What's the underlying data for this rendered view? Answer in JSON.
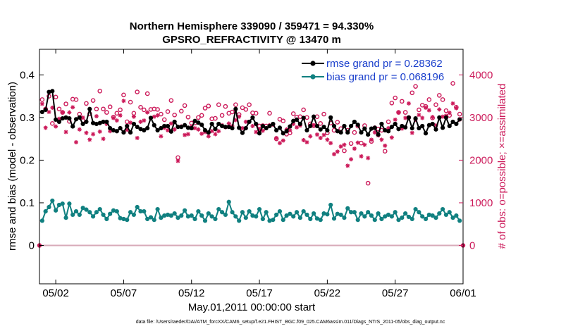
{
  "chart_data": {
    "type": "line",
    "title": "Northern Hemisphere 339090 / 359471 = 94.330%",
    "subtitle": "GPSRO_REFRACTIVITY @ 13470 m",
    "xlabel": "May.01,2011 00:00:00 start",
    "ylabel": "rmse and bias (model - observation)",
    "ylabel_right": "# of obs: o=possible; ×=assimilated",
    "footnote": "data file: /Users/raeder/DAI/ATM_forcXX/CAM6_setup/f.e21.FHIST_BGC.f09_025.CAM6assim.011/Diags_NTrS_2011-05/obs_diag_output.nc",
    "xlim": [
      0.8,
      32.0
    ],
    "ylim": [
      -0.09,
      0.46
    ],
    "ylim_right": [
      -900,
      4600
    ],
    "x_ticks": [
      {
        "value": 2,
        "label": "05/02"
      },
      {
        "value": 7,
        "label": "05/07"
      },
      {
        "value": 12,
        "label": "05/12"
      },
      {
        "value": 17,
        "label": "05/17"
      },
      {
        "value": 22,
        "label": "05/22"
      },
      {
        "value": 27,
        "label": "05/27"
      },
      {
        "value": 32,
        "label": "06/01"
      }
    ],
    "y_ticks": [
      {
        "value": 0,
        "label": "0"
      },
      {
        "value": 0.1,
        "label": "0.1"
      },
      {
        "value": 0.2,
        "label": "0.2"
      },
      {
        "value": 0.3,
        "label": "0.3"
      },
      {
        "value": 0.4,
        "label": "0.4"
      }
    ],
    "y_ticks_right": [
      {
        "value": 0,
        "label": "0"
      },
      {
        "value": 1000,
        "label": "1000"
      },
      {
        "value": 2000,
        "label": "2000"
      },
      {
        "value": 3000,
        "label": "3000"
      },
      {
        "value": 4000,
        "label": "4000"
      }
    ],
    "legend": [
      {
        "name": "rmse grand pr = 0.28362",
        "color": "#000000"
      },
      {
        "name": "bias grand pr = 0.068196",
        "color": "#108080"
      }
    ],
    "colors": {
      "rmse": "#000000",
      "bias": "#108080",
      "obs": "#cc1a5a",
      "zero": "#d8aab8"
    },
    "x": [
      1.0,
      1.25,
      1.5,
      1.75,
      2.0,
      2.25,
      2.5,
      2.75,
      3.0,
      3.25,
      3.5,
      3.75,
      4.0,
      4.25,
      4.5,
      4.75,
      5.0,
      5.25,
      5.5,
      5.75,
      6.0,
      6.25,
      6.5,
      6.75,
      7.0,
      7.25,
      7.5,
      7.75,
      8.0,
      8.25,
      8.5,
      8.75,
      9.0,
      9.25,
      9.5,
      9.75,
      10.0,
      10.25,
      10.5,
      10.75,
      11.0,
      11.25,
      11.5,
      11.75,
      12.0,
      12.25,
      12.5,
      12.75,
      13.0,
      13.25,
      13.5,
      13.75,
      14.0,
      14.25,
      14.5,
      14.75,
      15.0,
      15.25,
      15.5,
      15.75,
      16.0,
      16.25,
      16.5,
      16.75,
      17.0,
      17.25,
      17.5,
      17.75,
      18.0,
      18.25,
      18.5,
      18.75,
      19.0,
      19.25,
      19.5,
      19.75,
      20.0,
      20.25,
      20.5,
      20.75,
      21.0,
      21.25,
      21.5,
      21.75,
      22.0,
      22.25,
      22.5,
      22.75,
      23.0,
      23.25,
      23.5,
      23.75,
      24.0,
      24.25,
      24.5,
      24.75,
      25.0,
      25.25,
      25.5,
      25.75,
      26.0,
      26.25,
      26.5,
      26.75,
      27.0,
      27.25,
      27.5,
      27.75,
      28.0,
      28.25,
      28.5,
      28.75,
      29.0,
      29.25,
      29.5,
      29.75,
      30.0,
      30.25,
      30.5,
      30.75,
      31.0,
      31.25,
      31.5,
      31.75
    ],
    "series": [
      {
        "name": "rmse",
        "values": [
          0.313,
          0.318,
          0.36,
          0.362,
          0.295,
          0.29,
          0.298,
          0.3,
          0.298,
          0.279,
          0.296,
          0.3,
          0.285,
          0.29,
          0.32,
          0.287,
          0.285,
          0.287,
          0.29,
          0.29,
          0.275,
          0.27,
          0.268,
          0.275,
          0.265,
          0.28,
          0.265,
          0.285,
          0.278,
          0.273,
          0.27,
          0.275,
          0.299,
          0.282,
          0.27,
          0.275,
          0.28,
          0.28,
          0.267,
          0.29,
          0.278,
          0.278,
          0.282,
          0.276,
          0.275,
          0.292,
          0.288,
          0.283,
          0.27,
          0.265,
          0.285,
          0.273,
          0.285,
          0.28,
          0.278,
          0.278,
          0.275,
          0.32,
          0.276,
          0.264,
          0.275,
          0.29,
          0.3,
          0.285,
          0.263,
          0.28,
          0.275,
          0.28,
          0.285,
          0.27,
          0.276,
          0.263,
          0.268,
          0.279,
          0.292,
          0.295,
          0.285,
          0.299,
          0.27,
          0.28,
          0.302,
          0.28,
          0.272,
          0.278,
          0.27,
          0.3,
          0.28,
          0.268,
          0.265,
          0.28,
          0.265,
          0.28,
          0.29,
          0.283,
          0.265,
          0.274,
          0.26,
          0.274,
          0.276,
          0.26,
          0.285,
          0.27,
          0.268,
          0.278,
          0.285,
          0.273,
          0.28,
          0.277,
          0.3,
          0.275,
          0.298,
          0.275,
          0.28,
          0.263,
          0.282,
          0.285,
          0.272,
          0.3,
          0.276,
          0.3,
          0.28,
          0.29,
          0.285,
          0.296
        ]
      },
      {
        "name": "bias",
        "values": [
          0.058,
          0.08,
          0.09,
          0.105,
          0.082,
          0.095,
          0.098,
          0.065,
          0.098,
          0.072,
          0.08,
          0.072,
          0.088,
          0.084,
          0.078,
          0.068,
          0.078,
          0.085,
          0.072,
          0.062,
          0.074,
          0.082,
          0.08,
          0.064,
          0.062,
          0.06,
          0.078,
          0.072,
          0.09,
          0.08,
          0.08,
          0.062,
          0.066,
          0.06,
          0.085,
          0.065,
          0.07,
          0.072,
          0.07,
          0.075,
          0.065,
          0.07,
          0.082,
          0.068,
          0.07,
          0.062,
          0.08,
          0.07,
          0.058,
          0.075,
          0.068,
          0.062,
          0.085,
          0.078,
          0.072,
          0.102,
          0.078,
          0.068,
          0.058,
          0.078,
          0.065,
          0.08,
          0.07,
          0.068,
          0.085,
          0.062,
          0.078,
          0.058,
          0.06,
          0.072,
          0.08,
          0.06,
          0.07,
          0.074,
          0.068,
          0.078,
          0.065,
          0.08,
          0.072,
          0.062,
          0.075,
          0.063,
          0.06,
          0.075,
          0.073,
          0.095,
          0.063,
          0.074,
          0.072,
          0.065,
          0.087,
          0.078,
          0.078,
          0.06,
          0.075,
          0.068,
          0.078,
          0.07,
          0.06,
          0.075,
          0.062,
          0.068,
          0.072,
          0.068,
          0.078,
          0.06,
          0.065,
          0.075,
          0.067,
          0.062,
          0.085,
          0.078,
          0.068,
          0.062,
          0.072,
          0.07,
          0.065,
          0.075,
          0.085,
          0.072,
          0.078,
          0.065,
          0.07,
          0.058
        ]
      },
      {
        "name": "possible",
        "values": [
          3420,
          3200,
          3500,
          2860,
          3480,
          3200,
          3120,
          3320,
          2910,
          3430,
          3420,
          3080,
          2930,
          3330,
          3090,
          3400,
          3200,
          3620,
          3200,
          3120,
          3250,
          3010,
          3100,
          3180,
          3530,
          2900,
          3360,
          3100,
          3600,
          3240,
          3180,
          3560,
          3190,
          3200,
          3190,
          3080,
          2950,
          3140,
          3400,
          3060,
          2060,
          3150,
          3280,
          3010,
          2870,
          2870,
          3000,
          3050,
          3220,
          3270,
          2970,
          2980,
          3300,
          3050,
          3260,
          3100,
          3130,
          3300,
          3070,
          3230,
          3190,
          3300,
          3110,
          3100,
          2800,
          2810,
          2800,
          3100,
          2840,
          2500,
          2960,
          2920,
          2610,
          2640,
          3090,
          3010,
          3020,
          3180,
          3000,
          2850,
          2810,
          3020,
          2860,
          3080,
          2640,
          2870,
          2700,
          2890,
          2740,
          2220,
          2700,
          2390,
          2650,
          2800,
          2400,
          2810,
          1460,
          2440,
          2760,
          2730,
          2700,
          2210,
          2900,
          3340,
          3460,
          3120,
          3380,
          3120,
          3000,
          3580,
          3730,
          3180,
          3290,
          3260,
          3420,
          2990,
          3300,
          3520,
          3420,
          3160,
          3050,
          3800,
          3240,
          3080
        ]
      },
      {
        "name": "assimilated",
        "values": [
          3320,
          2760,
          3130,
          3230,
          2790,
          2970,
          3120,
          2660,
          3120,
          3240,
          2420,
          2720,
          3000,
          2640,
          2480,
          2610,
          3030,
          2670,
          2500,
          2850,
          2680,
          2990,
          2930,
          3050,
          3390,
          2710,
          2880,
          3020,
          2520,
          2900,
          2930,
          3120,
          2990,
          3020,
          3050,
          2560,
          2760,
          2700,
          2860,
          2720,
          1980,
          2790,
          2590,
          2610,
          2780,
          2750,
          2720,
          2620,
          2660,
          2560,
          2680,
          2610,
          2680,
          2820,
          2770,
          2860,
          2800,
          2940,
          3020,
          2750,
          2900,
          2900,
          2800,
          2660,
          2730,
          2690,
          2750,
          2820,
          2840,
          2520,
          2400,
          2460,
          2720,
          2700,
          2850,
          2770,
          2810,
          2470,
          2420,
          2560,
          2820,
          2600,
          2520,
          2590,
          2480,
          2400,
          2140,
          2200,
          2320,
          2360,
          1870,
          2020,
          2270,
          2410,
          2090,
          2360,
          2050,
          2480,
          2650,
          2580,
          2480,
          2340,
          2750,
          2530,
          2950,
          3120,
          2740,
          2990,
          3330,
          2640,
          2950,
          3060,
          2990,
          3230,
          3170,
          3010,
          2820,
          3190,
          3020,
          3040,
          3110,
          3330,
          3220,
          2950
        ]
      }
    ]
  }
}
